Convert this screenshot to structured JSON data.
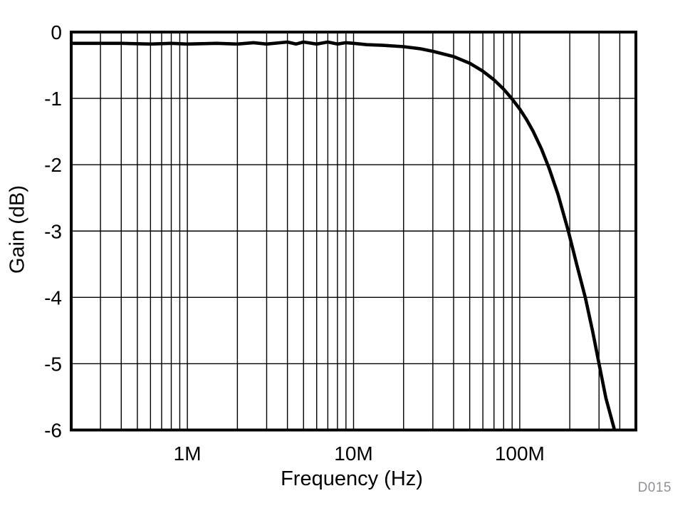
{
  "chart_data": {
    "type": "line",
    "title": "",
    "xlabel": "Frequency (Hz)",
    "ylabel": "Gain (dB)",
    "watermark": "D015",
    "x_scale": "log",
    "xlim": [
      200000,
      500000000
    ],
    "ylim": [
      -6,
      0
    ],
    "grid": true,
    "legend_position": "none",
    "x_ticks": [
      {
        "value": 1000000,
        "label": "1M"
      },
      {
        "value": 10000000,
        "label": "10M"
      },
      {
        "value": 100000000,
        "label": "100M"
      }
    ],
    "y_ticks": [
      {
        "value": 0,
        "label": "0"
      },
      {
        "value": -1,
        "label": "-1"
      },
      {
        "value": -2,
        "label": "-2"
      },
      {
        "value": -3,
        "label": "-3"
      },
      {
        "value": -4,
        "label": "-4"
      },
      {
        "value": -5,
        "label": "-5"
      },
      {
        "value": -6,
        "label": "-6"
      }
    ],
    "x_gridlines": [
      300000.0,
      400000.0,
      500000.0,
      600000.0,
      700000.0,
      800000.0,
      900000.0,
      1000000.0,
      2000000.0,
      3000000.0,
      4000000.0,
      5000000.0,
      6000000.0,
      7000000.0,
      8000000.0,
      9000000.0,
      10000000.0,
      20000000.0,
      30000000.0,
      40000000.0,
      50000000.0,
      60000000.0,
      70000000.0,
      80000000.0,
      90000000.0,
      100000000.0,
      200000000.0,
      300000000.0,
      400000000.0
    ],
    "y_gridlines": [
      -1,
      -2,
      -3,
      -4,
      -5
    ],
    "series": [
      {
        "name": "Gain",
        "color": "#000000",
        "points": [
          [
            200000.0,
            -0.17
          ],
          [
            300000.0,
            -0.17
          ],
          [
            400000.0,
            -0.17
          ],
          [
            600000.0,
            -0.18
          ],
          [
            800000.0,
            -0.17
          ],
          [
            1000000.0,
            -0.18
          ],
          [
            1500000.0,
            -0.17
          ],
          [
            2000000.0,
            -0.18
          ],
          [
            2500000.0,
            -0.16
          ],
          [
            3000000.0,
            -0.18
          ],
          [
            4000000.0,
            -0.15
          ],
          [
            4500000.0,
            -0.18
          ],
          [
            5000000.0,
            -0.15
          ],
          [
            6000000.0,
            -0.18
          ],
          [
            7000000.0,
            -0.15
          ],
          [
            8000000.0,
            -0.18
          ],
          [
            9000000.0,
            -0.16
          ],
          [
            10000000.0,
            -0.17
          ],
          [
            12000000.0,
            -0.19
          ],
          [
            15000000.0,
            -0.2
          ],
          [
            20000000.0,
            -0.22
          ],
          [
            25000000.0,
            -0.25
          ],
          [
            30000000.0,
            -0.29
          ],
          [
            40000000.0,
            -0.37
          ],
          [
            50000000.0,
            -0.47
          ],
          [
            60000000.0,
            -0.59
          ],
          [
            70000000.0,
            -0.72
          ],
          [
            80000000.0,
            -0.86
          ],
          [
            90000000.0,
            -1.01
          ],
          [
            100000000.0,
            -1.16
          ],
          [
            110000000.0,
            -1.32
          ],
          [
            120000000.0,
            -1.49
          ],
          [
            135000000.0,
            -1.76
          ],
          [
            150000000.0,
            -2.05
          ],
          [
            170000000.0,
            -2.45
          ],
          [
            196000000.0,
            -3.0
          ],
          [
            220000000.0,
            -3.5
          ],
          [
            248000000.0,
            -4.0
          ],
          [
            275000000.0,
            -4.52
          ],
          [
            300000000.0,
            -5.0
          ],
          [
            330000000.0,
            -5.52
          ],
          [
            372000000.0,
            -6.0
          ]
        ]
      }
    ]
  }
}
